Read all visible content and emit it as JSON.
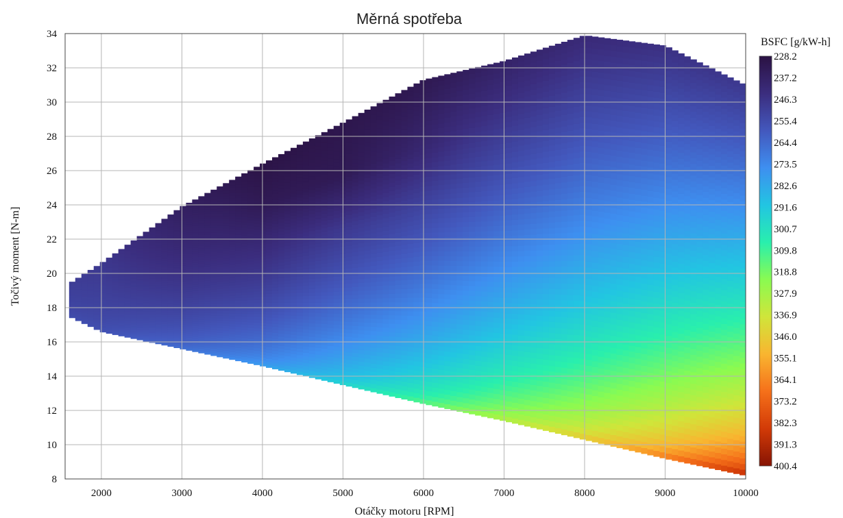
{
  "chart_data": {
    "type": "heatmap",
    "title": "Měrná spotřeba",
    "xlabel": "Otáčky motoru [RPM]",
    "ylabel": "Točivý moment [N-m]",
    "xlim": [
      1550,
      10000
    ],
    "ylim": [
      8,
      34
    ],
    "x_ticks": [
      2000,
      3000,
      4000,
      5000,
      6000,
      7000,
      8000,
      9000,
      10000
    ],
    "y_ticks": [
      8,
      10,
      12,
      14,
      16,
      18,
      20,
      22,
      24,
      26,
      28,
      30,
      32,
      34
    ],
    "grid": true,
    "colorbar": {
      "title": "BSFC [g/kW-h]",
      "min": 228.2,
      "max": 400.4,
      "ticks": [
        "228.2",
        "237.2",
        "246.3",
        "255.4",
        "264.4",
        "273.5",
        "282.6",
        "291.6",
        "300.7",
        "309.8",
        "318.8",
        "327.9",
        "336.9",
        "346.0",
        "355.1",
        "364.1",
        "373.2",
        "382.3",
        "391.3",
        "400.4"
      ],
      "colormap": [
        "#2b1243",
        "#3b2d7e",
        "#4358bd",
        "#3e8ff0",
        "#22c5e2",
        "#29efad",
        "#8afb51",
        "#d0e53a",
        "#f9b530",
        "#f5701a",
        "#d23a07",
        "#861403"
      ]
    },
    "boundary": {
      "upper": [
        [
          1600,
          19.4
        ],
        [
          2000,
          20.6
        ],
        [
          3000,
          23.9
        ],
        [
          4000,
          26.4
        ],
        [
          5000,
          28.8
        ],
        [
          6000,
          31.3
        ],
        [
          7000,
          32.4
        ],
        [
          8000,
          33.9
        ],
        [
          9000,
          33.3
        ],
        [
          10000,
          31.0
        ]
      ],
      "lower": [
        [
          1600,
          17.5
        ],
        [
          2000,
          16.6
        ],
        [
          3000,
          15.6
        ],
        [
          4000,
          14.6
        ],
        [
          5000,
          13.5
        ],
        [
          6000,
          12.4
        ],
        [
          7000,
          11.4
        ],
        [
          8000,
          10.3
        ],
        [
          9000,
          9.2
        ],
        [
          10000,
          8.2
        ]
      ]
    },
    "speeds": [
      1600,
      2000,
      3000,
      4000,
      5000,
      6000,
      7000,
      8000,
      9000,
      10000
    ],
    "bsfc_upper": [
      250,
      248,
      236,
      229,
      231,
      232,
      238,
      242,
      245,
      248
    ],
    "bsfc_lower": [
      256,
      258,
      268,
      282,
      300,
      318,
      336,
      352,
      372,
      396
    ]
  }
}
